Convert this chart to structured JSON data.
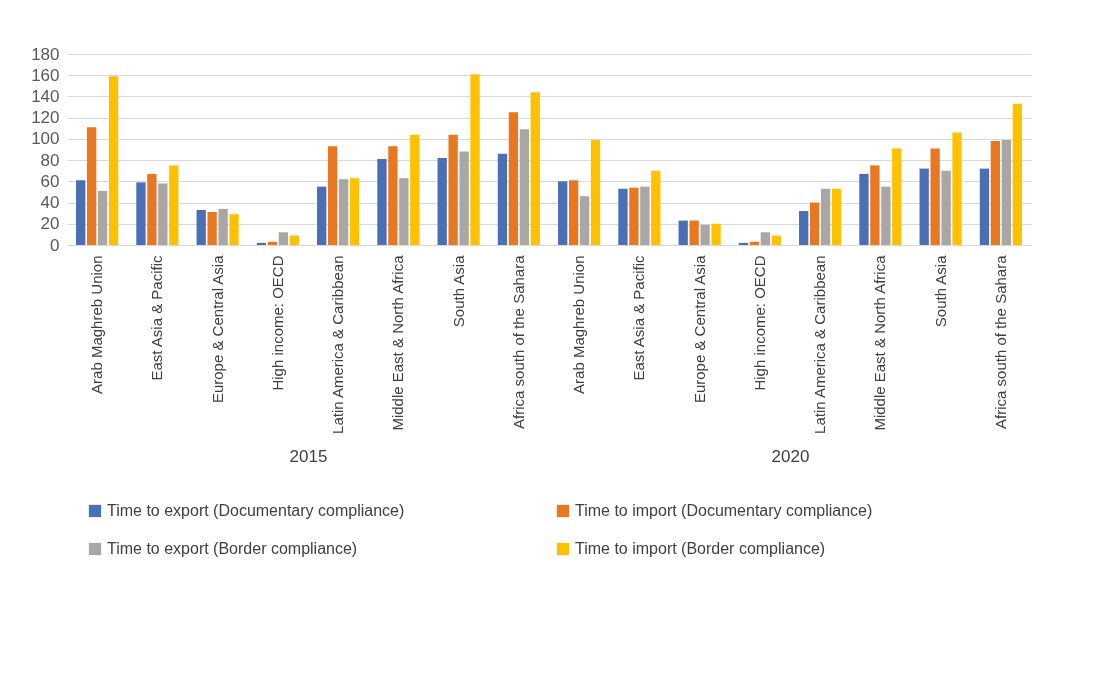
{
  "chart_data": [
    {
      "type": "bar",
      "xlabel": "2015",
      "categories": [
        "Arab Maghreb Union",
        "East Asia & Pacific",
        "Europe & Central Asia",
        "High income: OECD",
        "Latin America & Caribbean",
        "Middle East & North Africa",
        "South Asia",
        "Africa south of the Sahara"
      ],
      "ylim": [
        0,
        180
      ],
      "yticks": [
        0,
        20,
        40,
        60,
        80,
        100,
        120,
        140,
        160,
        180
      ],
      "grid": "y",
      "legend": "bottom",
      "series": [
        {
          "name": "Time to export (Documentary compliance)",
          "color": "#4a6fb5",
          "values": [
            61,
            59,
            33,
            2,
            55,
            81,
            82,
            86
          ]
        },
        {
          "name": "Time to import (Documentary compliance)",
          "color": "#e87722",
          "values": [
            111,
            67,
            31,
            3,
            93,
            93,
            104,
            125
          ]
        },
        {
          "name": "Time to export (Border compliance)",
          "color": "#aaa6a5",
          "values": [
            51,
            58,
            34,
            12,
            62,
            63,
            88,
            109
          ]
        },
        {
          "name": "Time to import (Border compliance)",
          "color": "#fdc100",
          "values": [
            159,
            75,
            29,
            9,
            63,
            104,
            161,
            144
          ]
        }
      ]
    },
    {
      "type": "bar",
      "xlabel": "2020",
      "categories": [
        "Arab Maghreb Union",
        "East Asia & Pacific",
        "Europe & Central Asia",
        "High income: OECD",
        "Latin America & Caribbean",
        "Middle East & North Africa",
        "South Asia",
        "Africa south of the Sahara"
      ],
      "ylim": [
        0,
        180
      ],
      "yticks": [
        0,
        20,
        40,
        60,
        80,
        100,
        120,
        140,
        160,
        180
      ],
      "grid": "y",
      "legend": "bottom",
      "tick_labels": "x",
      "series": [
        {
          "name": "Time to export (Documentary compliance)",
          "color": "#4a6fb5",
          "values": [
            60,
            53,
            23,
            2,
            32,
            67,
            72,
            72
          ]
        },
        {
          "name": "Time to import (Documentary compliance)",
          "color": "#e87722",
          "values": [
            61,
            54,
            23,
            3,
            40,
            75,
            91,
            98
          ]
        },
        {
          "name": "Time to export (Border compliance)",
          "color": "#aaa6a5",
          "values": [
            46,
            55,
            19,
            12,
            53,
            55,
            70,
            99
          ]
        },
        {
          "name": "Time to import (Border compliance)",
          "color": "#fdc100",
          "values": [
            99,
            70,
            20,
            9,
            53,
            91,
            106,
            133
          ]
        }
      ]
    }
  ]
}
